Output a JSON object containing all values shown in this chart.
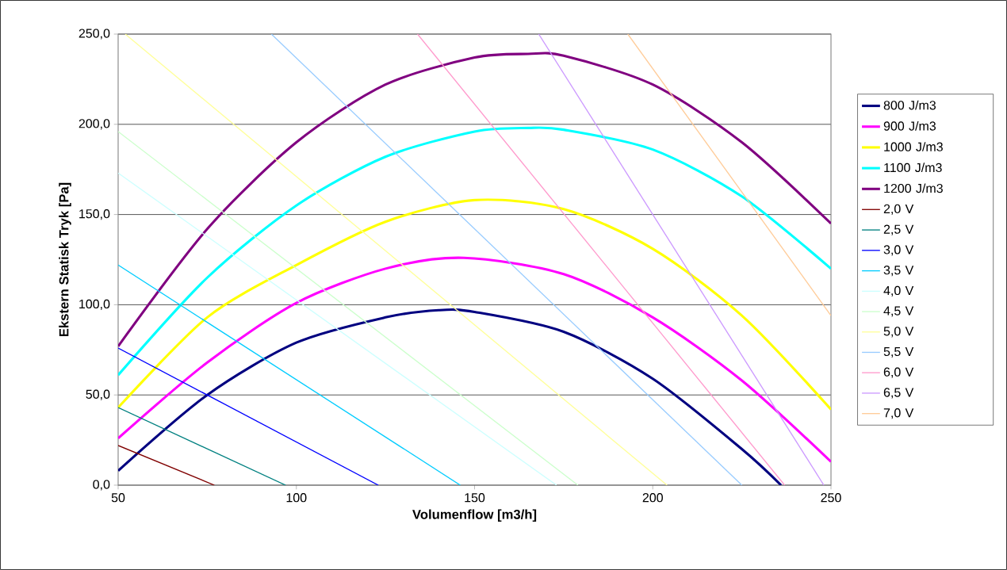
{
  "chart_data": {
    "type": "line",
    "xlabel": "Volumenflow [m3/h]",
    "ylabel": "Ekstern Statisk Tryk [Pa]",
    "xlim": [
      50,
      250
    ],
    "ylim": [
      0,
      250
    ],
    "xticks": [
      50,
      100,
      150,
      200,
      250
    ],
    "yticks": [
      {
        "value": 0,
        "label": "0,0"
      },
      {
        "value": 50,
        "label": "50,0"
      },
      {
        "value": 100,
        "label": "100,0"
      },
      {
        "value": 150,
        "label": "150,0"
      },
      {
        "value": 200,
        "label": "200,0"
      },
      {
        "value": 250,
        "label": "250,0"
      }
    ],
    "grid": "y",
    "legend": "right",
    "marker": "none",
    "line_style": "solid",
    "series": [
      {
        "name": "800 J/m3",
        "color": "#000080",
        "x": [
          50,
          75,
          100,
          125,
          140,
          150,
          175,
          200,
          225,
          236
        ],
        "values": [
          8,
          50,
          79,
          93,
          97,
          96,
          85,
          59,
          20,
          0
        ]
      },
      {
        "name": "900 J/m3",
        "color": "#ff00ff",
        "x": [
          50,
          75,
          100,
          125,
          147,
          175,
          200,
          225,
          250
        ],
        "values": [
          26,
          68,
          101,
          120,
          126,
          117,
          93,
          58,
          13
        ]
      },
      {
        "name": "1000 J/m3",
        "color": "#ffff00",
        "x": [
          50,
          75,
          100,
          125,
          150,
          175,
          200,
          225,
          250
        ],
        "values": [
          43,
          93,
          122,
          146,
          158,
          153,
          131,
          94,
          42
        ]
      },
      {
        "name": "1100 J/m3",
        "color": "#00ffff",
        "x": [
          50,
          75,
          100,
          125,
          150,
          165,
          175,
          200,
          225,
          250
        ],
        "values": [
          61,
          115,
          155,
          182,
          196,
          198,
          197,
          186,
          160,
          120
        ]
      },
      {
        "name": "1200 J/m3",
        "color": "#800080",
        "x": [
          50,
          75,
          100,
          125,
          150,
          165,
          175,
          200,
          225,
          250
        ],
        "values": [
          77,
          142,
          190,
          222,
          237,
          239,
          238,
          222,
          190,
          145
        ]
      },
      {
        "name": "2,0 V",
        "color": "#800000",
        "x": [
          50,
          77
        ],
        "values": [
          22,
          0
        ]
      },
      {
        "name": "2,5 V",
        "color": "#008080",
        "x": [
          50,
          97
        ],
        "values": [
          43,
          0
        ]
      },
      {
        "name": "3,0 V",
        "color": "#0000ff",
        "x": [
          50,
          123
        ],
        "values": [
          76,
          0
        ]
      },
      {
        "name": "3,5 V",
        "color": "#00ccff",
        "x": [
          50,
          146
        ],
        "values": [
          122,
          0
        ]
      },
      {
        "name": "4,0 V",
        "color": "#ccffff",
        "x": [
          50,
          173
        ],
        "values": [
          173,
          0
        ]
      },
      {
        "name": "4,5 V",
        "color": "#ccffcc",
        "x": [
          50,
          179
        ],
        "values": [
          196,
          0
        ]
      },
      {
        "name": "5,0 V",
        "color": "#ffff99",
        "x": [
          52,
          204
        ],
        "values": [
          250,
          0
        ]
      },
      {
        "name": "5,5 V",
        "color": "#99ccff",
        "x": [
          93,
          225
        ],
        "values": [
          250,
          0
        ]
      },
      {
        "name": "6,0 V",
        "color": "#ff99cc",
        "x": [
          134,
          237
        ],
        "values": [
          250,
          0
        ]
      },
      {
        "name": "6,5 V",
        "color": "#cc99ff",
        "x": [
          168,
          248
        ],
        "values": [
          250,
          0
        ]
      },
      {
        "name": "7,0 V",
        "color": "#ffcc99",
        "x": [
          193,
          250
        ],
        "values": [
          250,
          94
        ]
      }
    ]
  }
}
